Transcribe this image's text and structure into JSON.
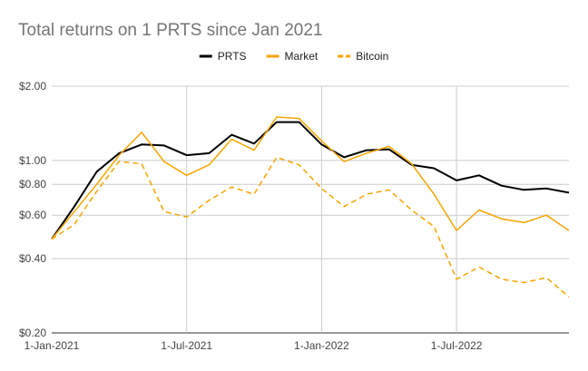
{
  "chart_data": {
    "type": "line",
    "title": "Total returns on 1 PRTS since Jan 2021",
    "xlabel": "",
    "ylabel": "",
    "y_scale": "log",
    "ylim": [
      0.2,
      2.0
    ],
    "y_ticks": [
      2.0,
      1.0,
      0.8,
      0.6,
      0.4,
      0.2
    ],
    "y_tick_labels": [
      "$2.00",
      "$1.00",
      "$0.80",
      "$0.60",
      "$0.40",
      "$0.20"
    ],
    "x_ticks": [
      0,
      6,
      12,
      18
    ],
    "x_tick_labels": [
      "1-Jan-2021",
      "1-Jul-2021",
      "1-Jan-2022",
      "1-Jul-2022"
    ],
    "x": [
      0,
      1,
      2,
      3,
      4,
      5,
      6,
      7,
      8,
      9,
      10,
      11,
      12,
      13,
      14,
      15,
      16,
      17,
      18,
      19,
      20,
      21,
      22,
      23
    ],
    "legend_position": "top-center",
    "series": [
      {
        "name": "PRTS",
        "color": "#000000",
        "dash": "solid",
        "values": [
          0.48,
          0.65,
          0.9,
          1.07,
          1.16,
          1.15,
          1.05,
          1.07,
          1.27,
          1.17,
          1.43,
          1.43,
          1.16,
          1.03,
          1.1,
          1.11,
          0.96,
          0.93,
          0.83,
          0.87,
          0.79,
          0.76,
          0.77,
          0.74
        ]
      },
      {
        "name": "Market",
        "color": "#f5a500",
        "dash": "solid",
        "values": [
          0.48,
          0.62,
          0.8,
          1.05,
          1.3,
          0.99,
          0.87,
          0.96,
          1.22,
          1.1,
          1.5,
          1.48,
          1.2,
          0.99,
          1.07,
          1.14,
          0.97,
          0.73,
          0.52,
          0.63,
          0.58,
          0.56,
          0.6,
          0.52
        ]
      },
      {
        "name": "Bitcoin",
        "color": "#f5a500",
        "dash": "dashed",
        "values": [
          0.48,
          0.55,
          0.75,
          0.99,
          0.97,
          0.62,
          0.59,
          0.69,
          0.78,
          0.73,
          1.03,
          0.96,
          0.77,
          0.65,
          0.73,
          0.76,
          0.63,
          0.54,
          0.33,
          0.37,
          0.33,
          0.32,
          0.335,
          0.28
        ]
      }
    ]
  }
}
